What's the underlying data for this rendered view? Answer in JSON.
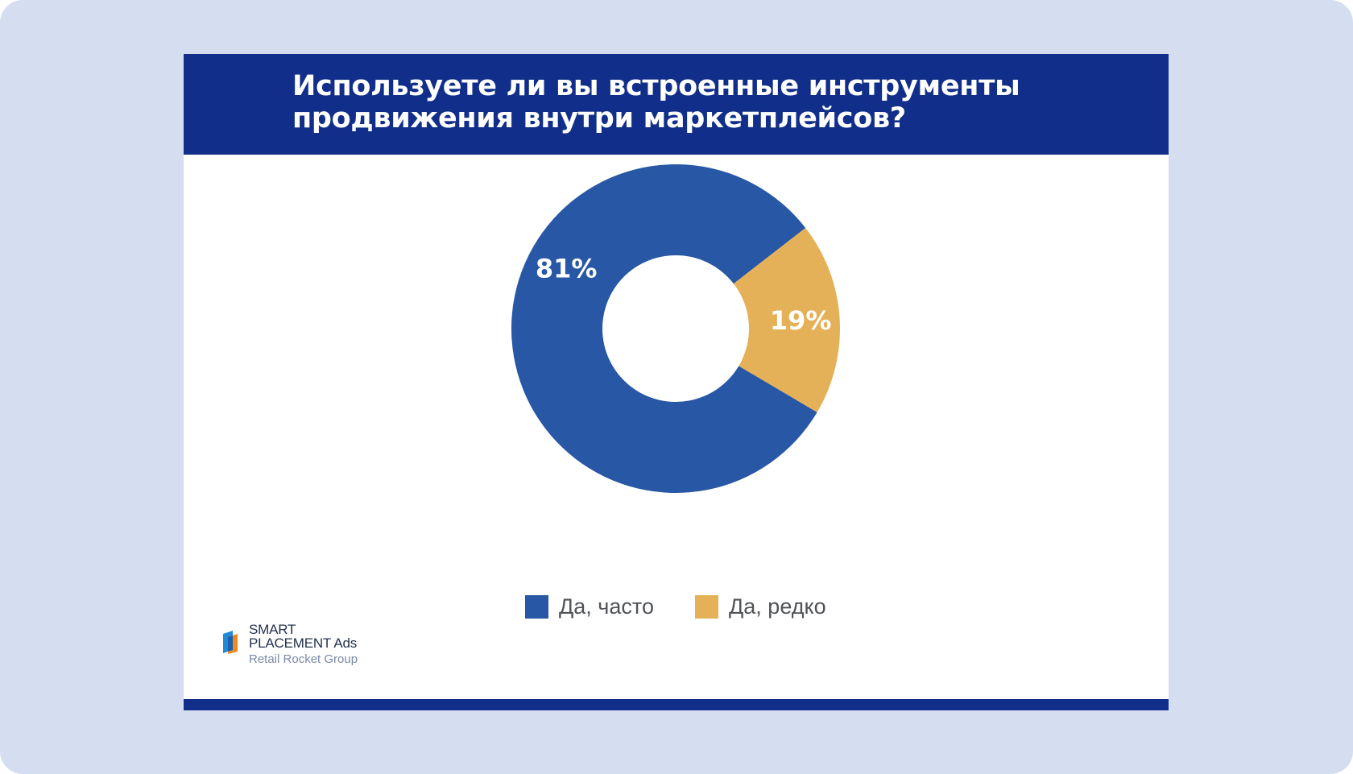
{
  "header": {
    "title_line1": "Используете ли вы встроенные инструменты",
    "title_line2": "продвижения внутри маркетплейсов?"
  },
  "chart_data": {
    "type": "pie",
    "variant": "donut",
    "title": "Используете ли вы встроенные инструменты продвижения внутри маркетплейсов?",
    "categories": [
      "Да, часто",
      "Да, редко"
    ],
    "values": [
      81,
      19
    ],
    "data_labels": [
      "81%",
      "19%"
    ],
    "colors": [
      "#2757a5",
      "#e5b158"
    ],
    "legend_position": "bottom"
  },
  "legend": {
    "items": [
      {
        "label": "Да, часто",
        "color": "#2757a5"
      },
      {
        "label": "Да, редко",
        "color": "#e5b158"
      }
    ]
  },
  "logo": {
    "line1": "SMART",
    "line2_main": "PLACEMENT",
    "line2_suffix": "Ads",
    "line3": "Retail Rocket Group"
  },
  "colors": {
    "page_background": "#d5ddf1",
    "header_background": "#112f8a",
    "slide_background": "#ffffff"
  }
}
